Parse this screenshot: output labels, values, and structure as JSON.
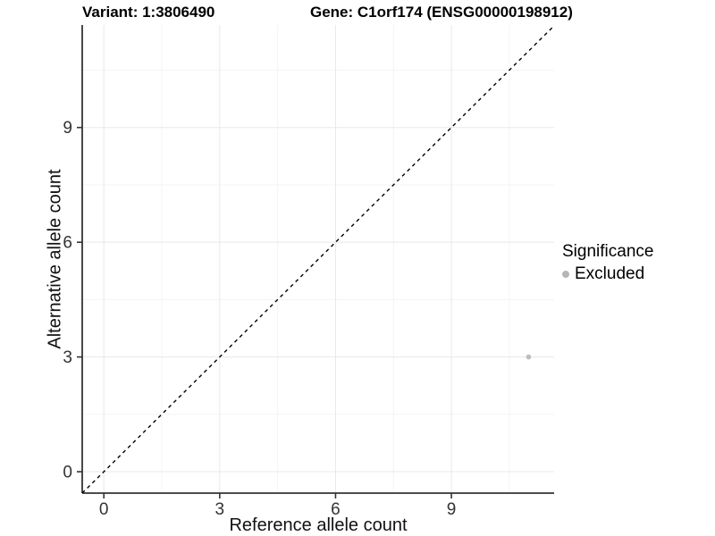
{
  "titles": {
    "variant": "Variant: 1:3806490",
    "gene": "Gene: C1orf174 (ENSG00000198912)"
  },
  "legend": {
    "title": "Significance",
    "items": [
      {
        "label": "Excluded",
        "color": "#b5b5b5"
      }
    ]
  },
  "chart_data": {
    "type": "scatter",
    "xlabel": "Reference allele count",
    "ylabel": "Alternative allele count",
    "xlim": [
      -0.56,
      11.66
    ],
    "ylim": [
      -0.56,
      11.68
    ],
    "x_ticks": [
      0,
      3,
      6,
      9
    ],
    "y_ticks": [
      0,
      3,
      6,
      9
    ],
    "x_minor_ticks": [
      1.5,
      4.5,
      7.5,
      10.5
    ],
    "y_minor_ticks": [
      1.5,
      4.5,
      7.5,
      10.5
    ],
    "grid": true,
    "legend_position": "right",
    "identity_line": {
      "style": "dashed",
      "slope": 1,
      "intercept": 0,
      "color": "#000000"
    },
    "series": [
      {
        "name": "Excluded",
        "color": "#bdbdbd",
        "points": [
          {
            "x": 11,
            "y": 3
          }
        ]
      }
    ],
    "colors": {
      "axis_line": "#333333",
      "tick_mark": "#333333",
      "tick_label": "#333333",
      "grid_major": "#e8e8e8",
      "grid_minor": "#f3f3f3",
      "background": "#ffffff"
    }
  }
}
